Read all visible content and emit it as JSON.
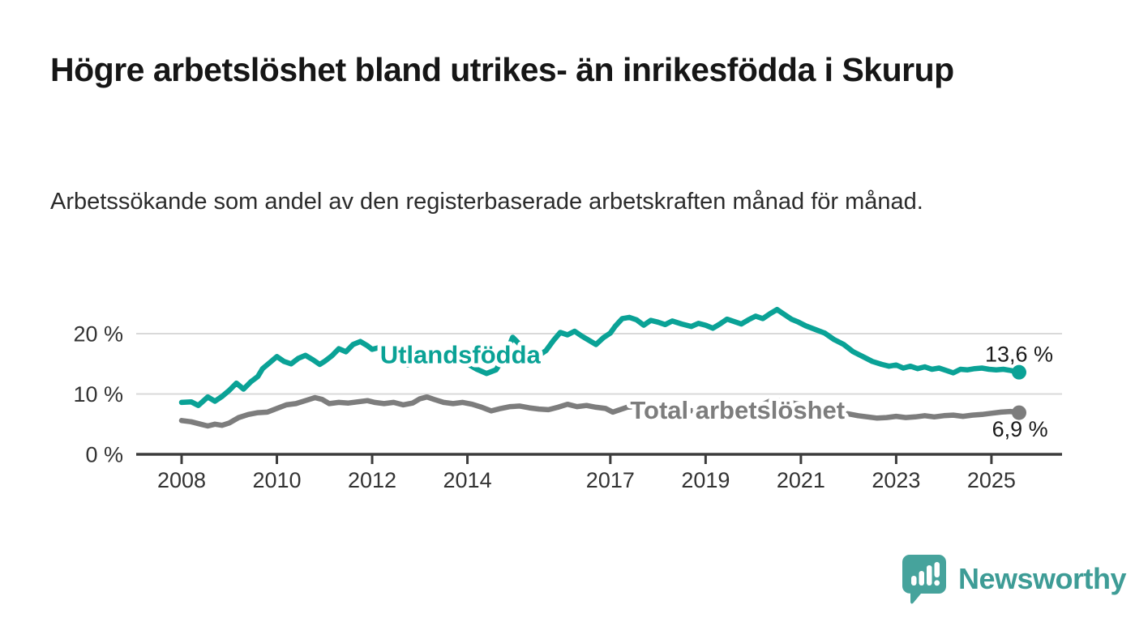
{
  "header": {
    "title": "Högre arbetslöshet bland utrikes- än inrikesfödda i Skurup",
    "subtitle": "Arbetssökande som andel av den registerbaserade arbetskraften månad för månad."
  },
  "branding": {
    "logo_text": "Newsworthy",
    "logo_icon": "bar-chart-speech-bubble-icon",
    "brand_color": "#3e9c96"
  },
  "colors": {
    "grid": "#d9d9d9",
    "axis": "#3c3c3c",
    "tick_text": "#333333",
    "value_text": "#1a1a1a",
    "series_foreign": "#0aa296",
    "series_total": "#7d7d7d"
  },
  "chart_data": {
    "type": "line",
    "x_unit": "year (monthly values)",
    "ylabel_format": "percent",
    "xlim": [
      2006.9,
      2026.5
    ],
    "ylim": [
      0,
      25.6
    ],
    "grid": "horizontal",
    "legend_position": "inline-labels",
    "xticks": [
      2008,
      2010,
      2012,
      2014,
      2017,
      2019,
      2021,
      2023,
      2025
    ],
    "yticks": [
      {
        "value": 0,
        "label": "0 %"
      },
      {
        "value": 10,
        "label": "10 %"
      },
      {
        "value": 20,
        "label": "20 %"
      }
    ],
    "series": [
      {
        "name": "Utlandsfödda",
        "color": "#0aa296",
        "label_pos": [
          2013.85,
          15.1
        ],
        "end_value": 13.6,
        "end_label": "13,6 %",
        "end_label_pos": [
          2025.58,
          15.4
        ],
        "points": [
          [
            2008.0,
            8.6
          ],
          [
            2008.2,
            8.7
          ],
          [
            2008.35,
            8.1
          ],
          [
            2008.55,
            9.5
          ],
          [
            2008.7,
            8.8
          ],
          [
            2008.85,
            9.6
          ],
          [
            2009.0,
            10.6
          ],
          [
            2009.15,
            11.8
          ],
          [
            2009.3,
            10.8
          ],
          [
            2009.45,
            12.0
          ],
          [
            2009.6,
            12.9
          ],
          [
            2009.7,
            14.2
          ],
          [
            2009.85,
            15.2
          ],
          [
            2010.0,
            16.2
          ],
          [
            2010.15,
            15.4
          ],
          [
            2010.3,
            15.0
          ],
          [
            2010.45,
            15.9
          ],
          [
            2010.6,
            16.4
          ],
          [
            2010.75,
            15.7
          ],
          [
            2010.9,
            14.9
          ],
          [
            2011.0,
            15.4
          ],
          [
            2011.15,
            16.3
          ],
          [
            2011.3,
            17.5
          ],
          [
            2011.45,
            17.0
          ],
          [
            2011.6,
            18.2
          ],
          [
            2011.75,
            18.7
          ],
          [
            2011.9,
            18.0
          ],
          [
            2012.0,
            17.4
          ],
          [
            2012.15,
            17.7
          ],
          [
            2012.3,
            16.9
          ],
          [
            2012.45,
            16.2
          ],
          [
            2012.6,
            15.6
          ],
          [
            2012.75,
            14.8
          ],
          [
            2012.9,
            15.3
          ],
          [
            2013.05,
            15.9
          ],
          [
            2013.2,
            16.6
          ],
          [
            2013.4,
            16.9
          ],
          [
            2013.6,
            16.3
          ],
          [
            2013.8,
            15.6
          ],
          [
            2014.0,
            15.0
          ],
          [
            2014.2,
            14.1
          ],
          [
            2014.4,
            13.4
          ],
          [
            2014.6,
            14.0
          ],
          [
            2014.8,
            16.5
          ],
          [
            2014.95,
            19.4
          ],
          [
            2015.1,
            18.2
          ],
          [
            2015.3,
            16.8
          ],
          [
            2015.5,
            16.4
          ],
          [
            2015.65,
            17.2
          ],
          [
            2015.8,
            18.8
          ],
          [
            2015.95,
            20.2
          ],
          [
            2016.1,
            19.8
          ],
          [
            2016.25,
            20.4
          ],
          [
            2016.4,
            19.6
          ],
          [
            2016.55,
            18.9
          ],
          [
            2016.7,
            18.2
          ],
          [
            2016.85,
            19.3
          ],
          [
            2017.0,
            20.1
          ],
          [
            2017.1,
            21.2
          ],
          [
            2017.25,
            22.5
          ],
          [
            2017.4,
            22.7
          ],
          [
            2017.55,
            22.3
          ],
          [
            2017.7,
            21.4
          ],
          [
            2017.85,
            22.2
          ],
          [
            2018.0,
            21.9
          ],
          [
            2018.15,
            21.5
          ],
          [
            2018.3,
            22.1
          ],
          [
            2018.5,
            21.6
          ],
          [
            2018.7,
            21.2
          ],
          [
            2018.85,
            21.7
          ],
          [
            2019.0,
            21.4
          ],
          [
            2019.15,
            20.9
          ],
          [
            2019.3,
            21.6
          ],
          [
            2019.45,
            22.4
          ],
          [
            2019.6,
            22.0
          ],
          [
            2019.75,
            21.6
          ],
          [
            2019.9,
            22.3
          ],
          [
            2020.05,
            22.9
          ],
          [
            2020.2,
            22.5
          ],
          [
            2020.35,
            23.3
          ],
          [
            2020.5,
            24.0
          ],
          [
            2020.65,
            23.2
          ],
          [
            2020.8,
            22.4
          ],
          [
            2020.95,
            21.9
          ],
          [
            2021.1,
            21.3
          ],
          [
            2021.3,
            20.7
          ],
          [
            2021.5,
            20.1
          ],
          [
            2021.7,
            19.0
          ],
          [
            2021.9,
            18.2
          ],
          [
            2022.1,
            17.0
          ],
          [
            2022.3,
            16.2
          ],
          [
            2022.5,
            15.4
          ],
          [
            2022.7,
            14.9
          ],
          [
            2022.85,
            14.6
          ],
          [
            2023.0,
            14.8
          ],
          [
            2023.15,
            14.3
          ],
          [
            2023.3,
            14.6
          ],
          [
            2023.45,
            14.2
          ],
          [
            2023.6,
            14.5
          ],
          [
            2023.75,
            14.1
          ],
          [
            2023.9,
            14.3
          ],
          [
            2024.05,
            13.9
          ],
          [
            2024.2,
            13.5
          ],
          [
            2024.35,
            14.1
          ],
          [
            2024.5,
            14.0
          ],
          [
            2024.65,
            14.2
          ],
          [
            2024.8,
            14.3
          ],
          [
            2024.95,
            14.1
          ],
          [
            2025.1,
            14.0
          ],
          [
            2025.25,
            14.1
          ],
          [
            2025.4,
            13.9
          ],
          [
            2025.58,
            13.6
          ]
        ]
      },
      {
        "name": "Total arbetslöshet",
        "color": "#7d7d7d",
        "label_pos": [
          2019.67,
          5.9
        ],
        "end_value": 6.9,
        "end_label": "6,9 %",
        "end_label_pos": [
          2025.6,
          2.95
        ],
        "points": [
          [
            2008.0,
            5.6
          ],
          [
            2008.2,
            5.4
          ],
          [
            2008.4,
            5.0
          ],
          [
            2008.55,
            4.7
          ],
          [
            2008.7,
            5.0
          ],
          [
            2008.85,
            4.8
          ],
          [
            2009.0,
            5.2
          ],
          [
            2009.2,
            6.1
          ],
          [
            2009.4,
            6.6
          ],
          [
            2009.6,
            6.9
          ],
          [
            2009.8,
            7.0
          ],
          [
            2010.0,
            7.6
          ],
          [
            2010.2,
            8.2
          ],
          [
            2010.4,
            8.4
          ],
          [
            2010.6,
            8.9
          ],
          [
            2010.8,
            9.4
          ],
          [
            2010.95,
            9.1
          ],
          [
            2011.1,
            8.4
          ],
          [
            2011.3,
            8.6
          ],
          [
            2011.5,
            8.5
          ],
          [
            2011.7,
            8.7
          ],
          [
            2011.9,
            8.9
          ],
          [
            2012.05,
            8.6
          ],
          [
            2012.25,
            8.4
          ],
          [
            2012.45,
            8.6
          ],
          [
            2012.65,
            8.2
          ],
          [
            2012.85,
            8.5
          ],
          [
            2013.0,
            9.2
          ],
          [
            2013.15,
            9.5
          ],
          [
            2013.3,
            9.1
          ],
          [
            2013.5,
            8.6
          ],
          [
            2013.7,
            8.4
          ],
          [
            2013.9,
            8.6
          ],
          [
            2014.1,
            8.3
          ],
          [
            2014.3,
            7.8
          ],
          [
            2014.5,
            7.2
          ],
          [
            2014.7,
            7.6
          ],
          [
            2014.9,
            7.9
          ],
          [
            2015.1,
            8.0
          ],
          [
            2015.3,
            7.7
          ],
          [
            2015.5,
            7.5
          ],
          [
            2015.7,
            7.4
          ],
          [
            2015.9,
            7.8
          ],
          [
            2016.1,
            8.3
          ],
          [
            2016.3,
            7.9
          ],
          [
            2016.5,
            8.1
          ],
          [
            2016.7,
            7.8
          ],
          [
            2016.9,
            7.6
          ],
          [
            2017.05,
            7.0
          ],
          [
            2017.2,
            7.4
          ],
          [
            2017.35,
            7.8
          ],
          [
            2017.5,
            7.9
          ],
          [
            2017.7,
            7.6
          ],
          [
            2018.0,
            7.4
          ],
          [
            2018.3,
            7.2
          ],
          [
            2018.6,
            7.3
          ],
          [
            2018.9,
            7.1
          ],
          [
            2019.2,
            7.0
          ],
          [
            2019.5,
            7.2
          ],
          [
            2019.8,
            7.4
          ],
          [
            2020.1,
            7.9
          ],
          [
            2020.4,
            9.0
          ],
          [
            2020.6,
            8.8
          ],
          [
            2020.9,
            8.4
          ],
          [
            2021.2,
            7.9
          ],
          [
            2021.5,
            7.4
          ],
          [
            2021.8,
            7.0
          ],
          [
            2022.0,
            6.7
          ],
          [
            2022.2,
            6.4
          ],
          [
            2022.4,
            6.2
          ],
          [
            2022.6,
            6.0
          ],
          [
            2022.8,
            6.1
          ],
          [
            2023.0,
            6.3
          ],
          [
            2023.2,
            6.1
          ],
          [
            2023.4,
            6.2
          ],
          [
            2023.6,
            6.4
          ],
          [
            2023.8,
            6.2
          ],
          [
            2024.0,
            6.4
          ],
          [
            2024.2,
            6.5
          ],
          [
            2024.4,
            6.3
          ],
          [
            2024.6,
            6.5
          ],
          [
            2024.8,
            6.6
          ],
          [
            2025.0,
            6.8
          ],
          [
            2025.2,
            7.0
          ],
          [
            2025.4,
            7.1
          ],
          [
            2025.58,
            6.9
          ]
        ]
      }
    ]
  }
}
